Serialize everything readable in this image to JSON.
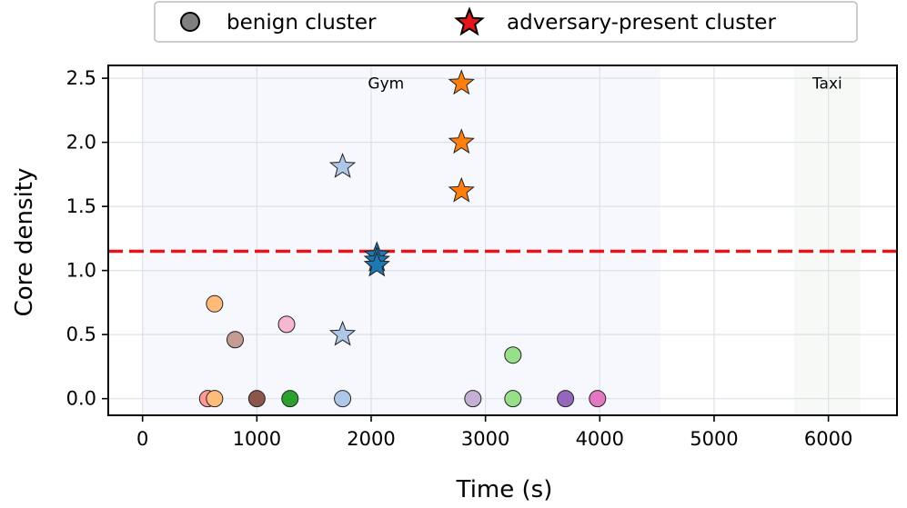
{
  "chart_data": {
    "type": "scatter",
    "xlabel": "Time (s)",
    "ylabel": "Core density",
    "xlim": [
      -300,
      6600
    ],
    "ylim": [
      -0.13,
      2.6
    ],
    "xticks": [
      0,
      1000,
      2000,
      3000,
      4000,
      5000,
      6000
    ],
    "yticks": [
      0.0,
      0.5,
      1.0,
      1.5,
      2.0,
      2.5
    ],
    "xtick_labels": [
      "0",
      "1000",
      "2000",
      "3000",
      "4000",
      "5000",
      "6000"
    ],
    "ytick_labels": [
      "0.0",
      "0.5",
      "1.0",
      "1.5",
      "2.0",
      "2.5"
    ],
    "grid": true,
    "threshold": {
      "y": 1.15,
      "color": "#e8141c",
      "style": "dashed"
    },
    "regions": [
      {
        "label": "Gym",
        "x_start": 0,
        "x_end": 4530,
        "color": "#f6f8fe",
        "label_x": 2130,
        "label_y": 2.46
      },
      {
        "label": "Taxi",
        "x_start": 5700,
        "x_end": 6280,
        "color": "#f6f9f6",
        "label_x": 5990,
        "label_y": 2.46
      }
    ],
    "legend": {
      "position": "top-center",
      "entries": [
        {
          "label": "benign cluster",
          "marker": "circle",
          "color": "#7f7f7f"
        },
        {
          "label": "adversary-present cluster",
          "marker": "star",
          "color": "#e8141c"
        }
      ]
    },
    "series": [
      {
        "name": "benign cluster",
        "marker": "circle",
        "points": [
          {
            "x": 570,
            "y": 0.0,
            "color": "#ff9896"
          },
          {
            "x": 630,
            "y": 0.0,
            "color": "#ffbb78"
          },
          {
            "x": 630,
            "y": 0.74,
            "color": "#ffbb78"
          },
          {
            "x": 810,
            "y": 0.46,
            "color": "#c49c94"
          },
          {
            "x": 1000,
            "y": 0.0,
            "color": "#8c564b"
          },
          {
            "x": 1260,
            "y": 0.58,
            "color": "#f7b6d2"
          },
          {
            "x": 1290,
            "y": 0.0,
            "color": "#2ca02c"
          },
          {
            "x": 1750,
            "y": 0.0,
            "color": "#aec7e8"
          },
          {
            "x": 2890,
            "y": 0.0,
            "color": "#c5b0d5"
          },
          {
            "x": 3240,
            "y": 0.34,
            "color": "#98df8a"
          },
          {
            "x": 3240,
            "y": 0.0,
            "color": "#98df8a"
          },
          {
            "x": 3700,
            "y": 0.0,
            "color": "#9467bd"
          },
          {
            "x": 3980,
            "y": 0.0,
            "color": "#e377c2"
          }
        ]
      },
      {
        "name": "adversary-present cluster",
        "marker": "star",
        "points": [
          {
            "x": 1750,
            "y": 1.81,
            "color": "#aec7e8"
          },
          {
            "x": 1750,
            "y": 0.5,
            "color": "#aec7e8"
          },
          {
            "x": 2050,
            "y": 1.12,
            "color": "#1f77b4"
          },
          {
            "x": 2050,
            "y": 1.08,
            "color": "#1f77b4"
          },
          {
            "x": 2050,
            "y": 1.04,
            "color": "#1f77b4"
          },
          {
            "x": 2790,
            "y": 2.46,
            "color": "#ff7f0e"
          },
          {
            "x": 2790,
            "y": 2.0,
            "color": "#ff7f0e"
          },
          {
            "x": 2790,
            "y": 1.62,
            "color": "#ff7f0e"
          }
        ]
      }
    ]
  }
}
